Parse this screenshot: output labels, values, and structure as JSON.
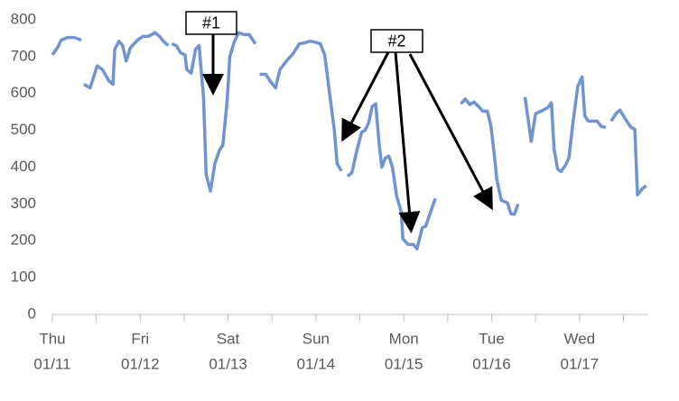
{
  "chart_data": {
    "type": "line",
    "x": [
      0,
      0.06,
      0.1,
      0.17,
      0.25,
      0.33,
      null,
      0.36,
      0.43,
      0.51,
      0.57,
      0.64,
      0.69,
      0.71,
      0.76,
      0.8,
      0.84,
      0.89,
      0.97,
      1.03,
      1.09,
      1.17,
      1.22,
      1.27,
      1.32,
      null,
      1.36,
      1.41,
      1.46,
      1.51,
      1.53,
      1.58,
      1.63,
      1.67,
      1.72,
      1.75,
      1.8,
      1.85,
      1.9,
      1.94,
      1.99,
      2.02,
      2.07,
      2.12,
      2.18,
      2.24,
      2.31,
      null,
      2.36,
      2.43,
      2.49,
      2.54,
      2.59,
      2.67,
      2.74,
      2.81,
      2.88,
      2.93,
      2.98,
      3.05,
      3.1,
      3.15,
      3.21,
      3.24,
      3.29,
      null,
      3.36,
      3.41,
      3.46,
      3.52,
      3.56,
      3.6,
      3.64,
      3.68,
      3.72,
      3.75,
      3.79,
      3.83,
      3.87,
      3.92,
      3.97,
      3.99,
      4.05,
      4.11,
      4.15,
      4.21,
      4.25,
      4.3,
      4.36,
      null,
      4.65,
      4.7,
      4.75,
      4.8,
      4.85,
      4.9,
      4.95,
      4.99,
      5.03,
      5.06,
      5.11,
      5.18,
      5.22,
      5.26,
      5.3,
      null,
      5.38,
      5.45,
      5.5,
      5.57,
      5.64,
      5.68,
      5.71,
      5.75,
      5.79,
      5.84,
      5.88,
      5.92,
      5.98,
      6.03,
      6.06,
      6.1,
      6.15,
      6.2,
      6.25,
      6.3,
      null,
      6.36,
      6.42,
      6.46,
      6.51,
      6.58,
      6.63,
      6.66,
      6.71,
      6.76
    ],
    "series": [
      {
        "color": "#6f94d3",
        "values": [
          705,
          725,
          745,
          752,
          752,
          745,
          null,
          625,
          615,
          675,
          665,
          635,
          625,
          720,
          742,
          730,
          688,
          725,
          745,
          755,
          755,
          765,
          755,
          740,
          730,
          null,
          735,
          730,
          710,
          705,
          665,
          655,
          720,
          730,
          590,
          380,
          335,
          410,
          445,
          460,
          580,
          700,
          740,
          765,
          760,
          760,
          735,
          null,
          652,
          652,
          630,
          615,
          665,
          690,
          708,
          735,
          738,
          742,
          740,
          735,
          705,
          610,
          500,
          410,
          390,
          null,
          375,
          385,
          440,
          495,
          500,
          520,
          565,
          572,
          460,
          400,
          425,
          430,
          400,
          320,
          280,
          205,
          190,
          190,
          178,
          235,
          240,
          275,
          315,
          null,
          572,
          585,
          570,
          577,
          565,
          552,
          552,
          515,
          435,
          365,
          310,
          303,
          273,
          272,
          300,
          null,
          590,
          470,
          545,
          553,
          562,
          575,
          450,
          395,
          388,
          405,
          425,
          510,
          620,
          645,
          540,
          525,
          525,
          525,
          510,
          508,
          null,
          525,
          547,
          555,
          535,
          510,
          502,
          325,
          340,
          350
        ]
      }
    ],
    "xlim": [
      0,
      6.78
    ],
    "xticks": [
      {
        "value": 0,
        "label": "Thu"
      },
      {
        "value": 1,
        "label": "Fri"
      },
      {
        "value": 2,
        "label": "Sat"
      },
      {
        "value": 3,
        "label": "Sun"
      },
      {
        "value": 4,
        "label": "Mon"
      },
      {
        "value": 5,
        "label": "Tue"
      },
      {
        "value": 6,
        "label": "Wed"
      }
    ],
    "xtick_dates": [
      "01/11",
      "01/12",
      "01/13",
      "01/14",
      "01/15",
      "01/16",
      "01/17"
    ],
    "xminor_ticks": [
      0.5,
      1.5,
      2.5,
      3.5,
      4.5,
      5.5,
      6.5
    ],
    "ylim": [
      0,
      800
    ],
    "yticks": [
      0,
      100,
      200,
      300,
      400,
      500,
      600,
      700,
      800
    ],
    "grid": false,
    "annotations": [
      {
        "text": "#1"
      },
      {
        "text": "#2"
      }
    ]
  }
}
